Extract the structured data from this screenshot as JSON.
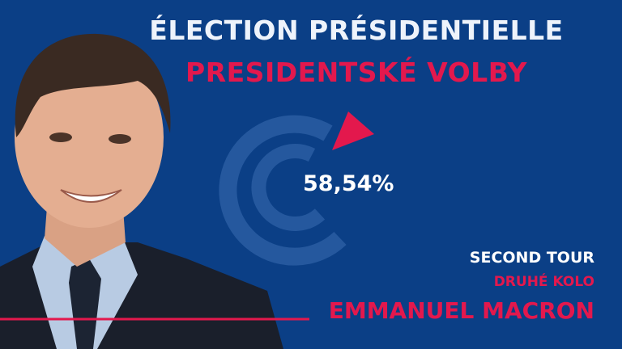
{
  "header": {
    "title": "ÉLECTION PRÉSIDENTIELLE",
    "subtitle": "PRESIDENTSKÉ VOLBY"
  },
  "result": {
    "percentage": "58,54%"
  },
  "footer": {
    "round": "SECOND TOUR",
    "round_translation": "DRUHÉ KOLO",
    "candidate": "EMMANUEL MACRON"
  }
}
